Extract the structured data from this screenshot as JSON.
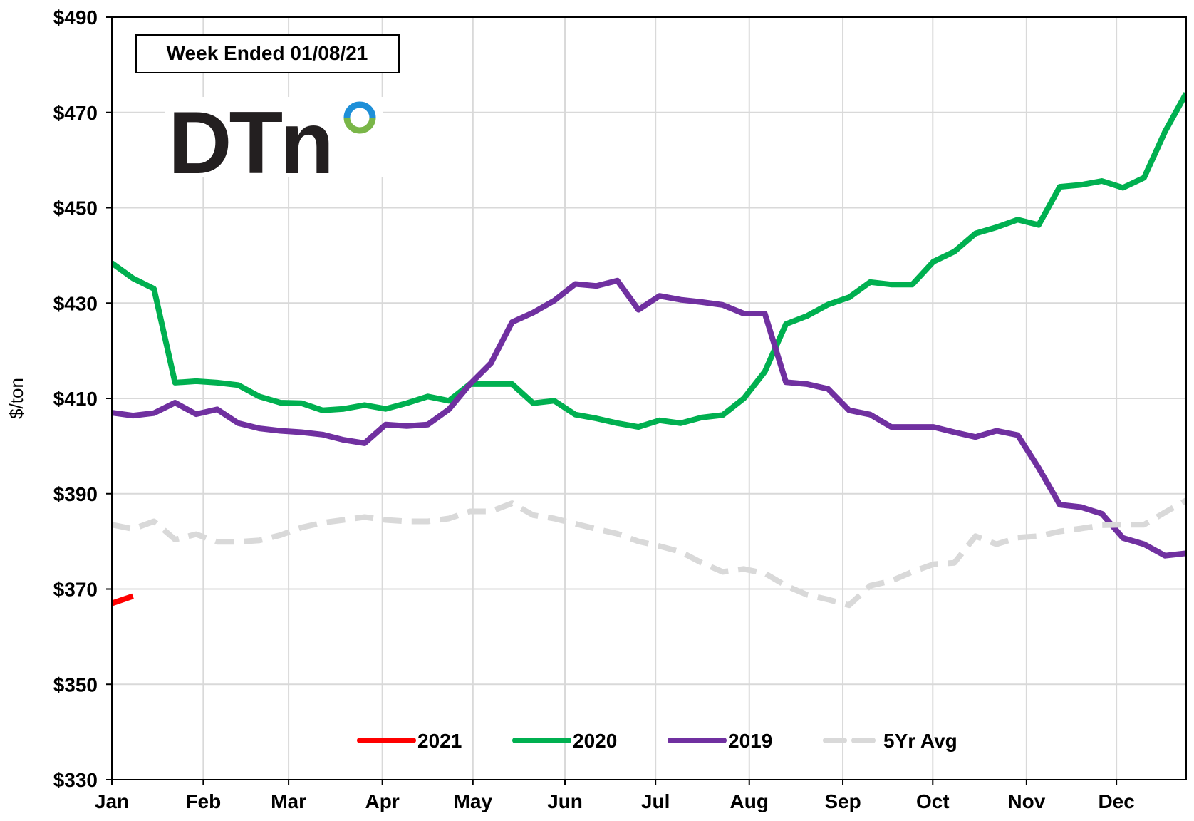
{
  "chart_data": {
    "type": "line",
    "annotation": "Week Ended 01/08/21",
    "logo": "DTn",
    "ylabel": "$/ton",
    "x": [
      0,
      1,
      2,
      3,
      4,
      5,
      6,
      7,
      8,
      9,
      10,
      11,
      12,
      13,
      14,
      15,
      16,
      17,
      18,
      19,
      20,
      21,
      22,
      23,
      24,
      25,
      26,
      27,
      28,
      29,
      30,
      31,
      32,
      33,
      34,
      35,
      36,
      37,
      38,
      39,
      40,
      41,
      42,
      43,
      44,
      45,
      46,
      47,
      48,
      49,
      50,
      51
    ],
    "xlim": [
      0,
      51
    ],
    "xticks": [
      {
        "value": 0,
        "label": "Jan"
      },
      {
        "value": 4.34,
        "label": "Feb"
      },
      {
        "value": 8.39,
        "label": "Mar"
      },
      {
        "value": 12.84,
        "label": "Apr"
      },
      {
        "value": 17.14,
        "label": "May"
      },
      {
        "value": 21.51,
        "label": "Jun"
      },
      {
        "value": 25.81,
        "label": "Jul"
      },
      {
        "value": 30.26,
        "label": "Aug"
      },
      {
        "value": 34.7,
        "label": "Sep"
      },
      {
        "value": 38.97,
        "label": "Oct"
      },
      {
        "value": 43.42,
        "label": "Nov"
      },
      {
        "value": 47.69,
        "label": "Dec"
      }
    ],
    "ylim": [
      330,
      490
    ],
    "yticks": [
      {
        "value": 330,
        "label": "$330"
      },
      {
        "value": 350,
        "label": "$350"
      },
      {
        "value": 370,
        "label": "$370"
      },
      {
        "value": 390,
        "label": "$390"
      },
      {
        "value": 410,
        "label": "$410"
      },
      {
        "value": 430,
        "label": "$430"
      },
      {
        "value": 450,
        "label": "$450"
      },
      {
        "value": 470,
        "label": "$470"
      },
      {
        "value": 490,
        "label": "$490"
      }
    ],
    "grid": true,
    "legend": "lower center",
    "series": [
      {
        "name": "2021",
        "color": "#ff0000",
        "dashed": false,
        "values": [
          367,
          368.5,
          null,
          null,
          null,
          null,
          null,
          null,
          null,
          null,
          null,
          null,
          null,
          null,
          null,
          null,
          null,
          null,
          null,
          null,
          null,
          null,
          null,
          null,
          null,
          null,
          null,
          null,
          null,
          null,
          null,
          null,
          null,
          null,
          null,
          null,
          null,
          null,
          null,
          null,
          null,
          null,
          null,
          null,
          null,
          null,
          null,
          null,
          null,
          null,
          null,
          null
        ]
      },
      {
        "name": "2020",
        "color": "#00b050",
        "dashed": false,
        "values": [
          438.4,
          435.2,
          433,
          413.3,
          413.6,
          413.3,
          412.8,
          410.4,
          409.1,
          409,
          407.5,
          407.8,
          408.6,
          407.8,
          409,
          410.4,
          409.5,
          413,
          413,
          413,
          409,
          409.5,
          406.6,
          405.8,
          404.8,
          404,
          405.4,
          404.8,
          406,
          406.5,
          410,
          415.6,
          425.6,
          427.3,
          429.7,
          431.2,
          434.4,
          433.9,
          433.9,
          438.7,
          440.8,
          444.6,
          445.9,
          447.5,
          446.4,
          454.4,
          454.8,
          455.6,
          454.2,
          456.3,
          466,
          474
        ]
      },
      {
        "name": "2019",
        "color": "#7030a0",
        "dashed": false,
        "values": [
          407,
          406.4,
          406.9,
          409.1,
          406.7,
          407.7,
          404.8,
          403.7,
          403.2,
          402.9,
          402.4,
          401.3,
          400.6,
          404.5,
          404.2,
          404.5,
          407.7,
          413,
          417.4,
          426,
          428,
          430.5,
          434,
          433.6,
          434.7,
          428.6,
          431.5,
          430.7,
          430.2,
          429.6,
          427.8,
          427.8,
          413.4,
          413,
          412,
          407.5,
          406.6,
          404,
          404,
          404,
          402.9,
          401.9,
          403.2,
          402.3,
          395.4,
          387.7,
          387.2,
          385.8,
          380.7,
          379.4,
          377,
          377.5
        ]
      },
      {
        "name": "5Yr Avg",
        "color": "#d9d9d9",
        "dashed": true,
        "values": [
          383.5,
          382.6,
          384.2,
          380.4,
          381.5,
          379.9,
          379.9,
          380.2,
          381.3,
          382.9,
          383.9,
          384.5,
          385.1,
          384.5,
          384.2,
          384.2,
          384.8,
          386.3,
          386.3,
          388,
          385.5,
          384.8,
          383.7,
          382.6,
          381.6,
          380,
          379,
          377.8,
          375.5,
          373.6,
          374.2,
          373.3,
          370.7,
          368.8,
          367.8,
          366.6,
          370.7,
          371.7,
          373.6,
          375.2,
          375.5,
          381.1,
          379.4,
          380.8,
          381.1,
          382.1,
          382.7,
          383.4,
          383.5,
          383.5,
          386.1,
          388.6
        ]
      }
    ]
  }
}
